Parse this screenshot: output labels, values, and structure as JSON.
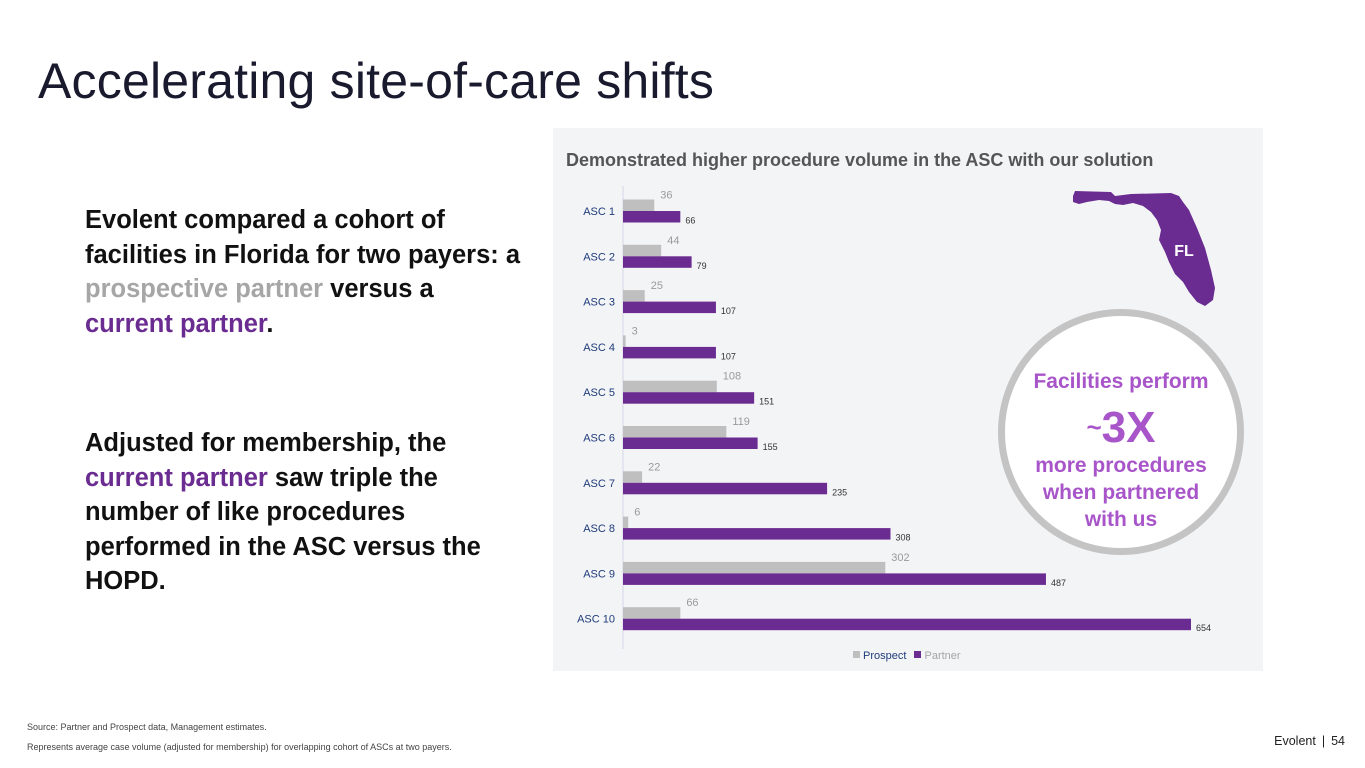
{
  "slide": {
    "title": "Accelerating site-of-care shifts",
    "para1": {
      "pre": "Evolent compared a cohort of facilities in Florida for two payers: a ",
      "grey": "prospective partner",
      "mid": " versus a ",
      "purple": "current partner",
      "post": "."
    },
    "para2": {
      "pre": "Adjusted for membership, the ",
      "purple": "current partner",
      "post": " saw triple the number of like procedures performed in the ASC versus the HOPD."
    },
    "state_label": "FL",
    "callout": {
      "line1": "Facilities perform",
      "tilde": "~",
      "big": "3X",
      "line3": "more procedures when partnered with us"
    },
    "footnote1": "Source: Partner and Prospect data, Management estimates.",
    "footnote2": "Represents average case volume (adjusted for membership) for overlapping cohort of ASCs at two payers.",
    "brand": "Evolent",
    "separator": "|",
    "page_number": "54"
  },
  "colors": {
    "prospect": "#bfbfbf",
    "partner": "#6b2c91",
    "accent_text": "#a855c9",
    "axis_label": "#1f3b7a"
  },
  "chart_data": {
    "type": "bar",
    "orientation": "horizontal",
    "title": "Demonstrated higher procedure volume in the ASC with our solution",
    "categories": [
      "ASC 1",
      "ASC 2",
      "ASC 3",
      "ASC 4",
      "ASC 5",
      "ASC 6",
      "ASC 7",
      "ASC 8",
      "ASC 9",
      "ASC 10"
    ],
    "series": [
      {
        "name": "Prospect",
        "values": [
          36,
          44,
          25,
          3,
          108,
          119,
          22,
          6,
          302,
          66
        ]
      },
      {
        "name": "Partner",
        "values": [
          66,
          79,
          107,
          107,
          151,
          155,
          235,
          308,
          487,
          654
        ]
      }
    ],
    "xlim": [
      0,
      654
    ],
    "grid": false,
    "legend": "bottom"
  }
}
